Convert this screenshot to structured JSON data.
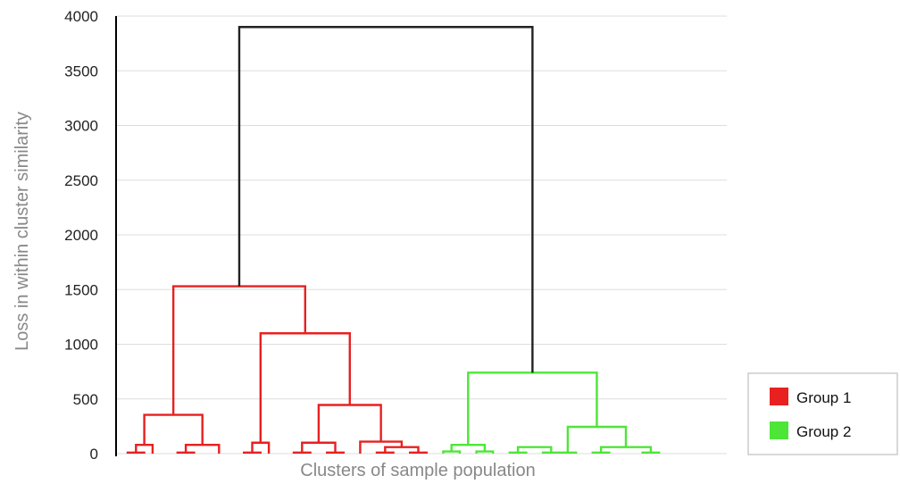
{
  "chart_data": {
    "type": "dendrogram",
    "title": "",
    "xlabel": "Clusters of sample population",
    "ylabel": "Loss in within cluster similarity",
    "ylim": [
      0,
      4000
    ],
    "yticks": [
      "0",
      "500",
      "1000",
      "1500",
      "2000",
      "2500",
      "3000",
      "3500",
      "4000"
    ],
    "grid": true,
    "legend_position": "right",
    "leaf_count": 28,
    "colors": {
      "group1": "#e82020",
      "group2": "#4de637",
      "root": "#222222"
    },
    "series": [
      {
        "name": "Group 1",
        "color": "#e82020"
      },
      {
        "name": "Group 2",
        "color": "#4de637"
      }
    ],
    "merges": [
      {
        "left": 0.5,
        "right": 1.5,
        "height": 80,
        "group": "group1"
      },
      {
        "left": 3.5,
        "right": 5.5,
        "height": 80,
        "group": "group1"
      },
      {
        "left": 1,
        "right": 4.5,
        "height": 355,
        "group": "group1"
      },
      {
        "left": 7.5,
        "right": 8.5,
        "height": 100,
        "group": "group1"
      },
      {
        "left": 10.5,
        "right": 12.5,
        "height": 100,
        "group": "group1"
      },
      {
        "left": 15.5,
        "right": 17.5,
        "height": 60,
        "group": "group1"
      },
      {
        "left": 14,
        "right": 16.5,
        "height": 110,
        "group": "group1"
      },
      {
        "left": 11.5,
        "right": 15.25,
        "height": 445,
        "group": "group1"
      },
      {
        "left": 8,
        "right": 13.375,
        "height": 1100,
        "group": "group1"
      },
      {
        "left": 2.75,
        "right": 10.6875,
        "height": 1530,
        "group": "group1"
      },
      {
        "left": 19.5,
        "right": 21.5,
        "height": 80,
        "group": "group2"
      },
      {
        "left": 23.5,
        "right": 25.5,
        "height": 60,
        "group": "group2"
      },
      {
        "left": 28.5,
        "right": 31.5,
        "height": 60,
        "group": "group2"
      },
      {
        "left": 26.5,
        "right": 30,
        "height": 245,
        "group": "group2"
      },
      {
        "left": 20.5,
        "right": 28.25,
        "height": 740,
        "group": "group2"
      },
      {
        "left": 6.71875,
        "right": 24.375,
        "height": 3900,
        "group": "root"
      }
    ],
    "leaf_pairs": [
      {
        "left": 0,
        "right": 1,
        "height": 10,
        "group": "group1"
      },
      {
        "left": 3,
        "right": 4,
        "height": 10,
        "group": "group1"
      },
      {
        "left": 7,
        "right": 8,
        "height": 10,
        "group": "group1"
      },
      {
        "left": 10,
        "right": 11,
        "height": 10,
        "group": "group1"
      },
      {
        "left": 12,
        "right": 13,
        "height": 10,
        "group": "group1"
      },
      {
        "left": 15,
        "right": 16,
        "height": 10,
        "group": "group1"
      },
      {
        "left": 17,
        "right": 18,
        "height": 10,
        "group": "group1"
      },
      {
        "left": 19,
        "right": 20,
        "height": 20,
        "group": "group2"
      },
      {
        "left": 21,
        "right": 22,
        "height": 20,
        "group": "group2"
      },
      {
        "left": 23,
        "right": 24,
        "height": 10,
        "group": "group2"
      },
      {
        "left": 25,
        "right": 26,
        "height": 10,
        "group": "group2"
      },
      {
        "left": 26,
        "right": 27,
        "height": 10,
        "group": "group2"
      },
      {
        "left": 28,
        "right": 29,
        "height": 10,
        "group": "group2"
      },
      {
        "left": 31,
        "right": 32,
        "height": 10,
        "group": "group2"
      }
    ]
  }
}
